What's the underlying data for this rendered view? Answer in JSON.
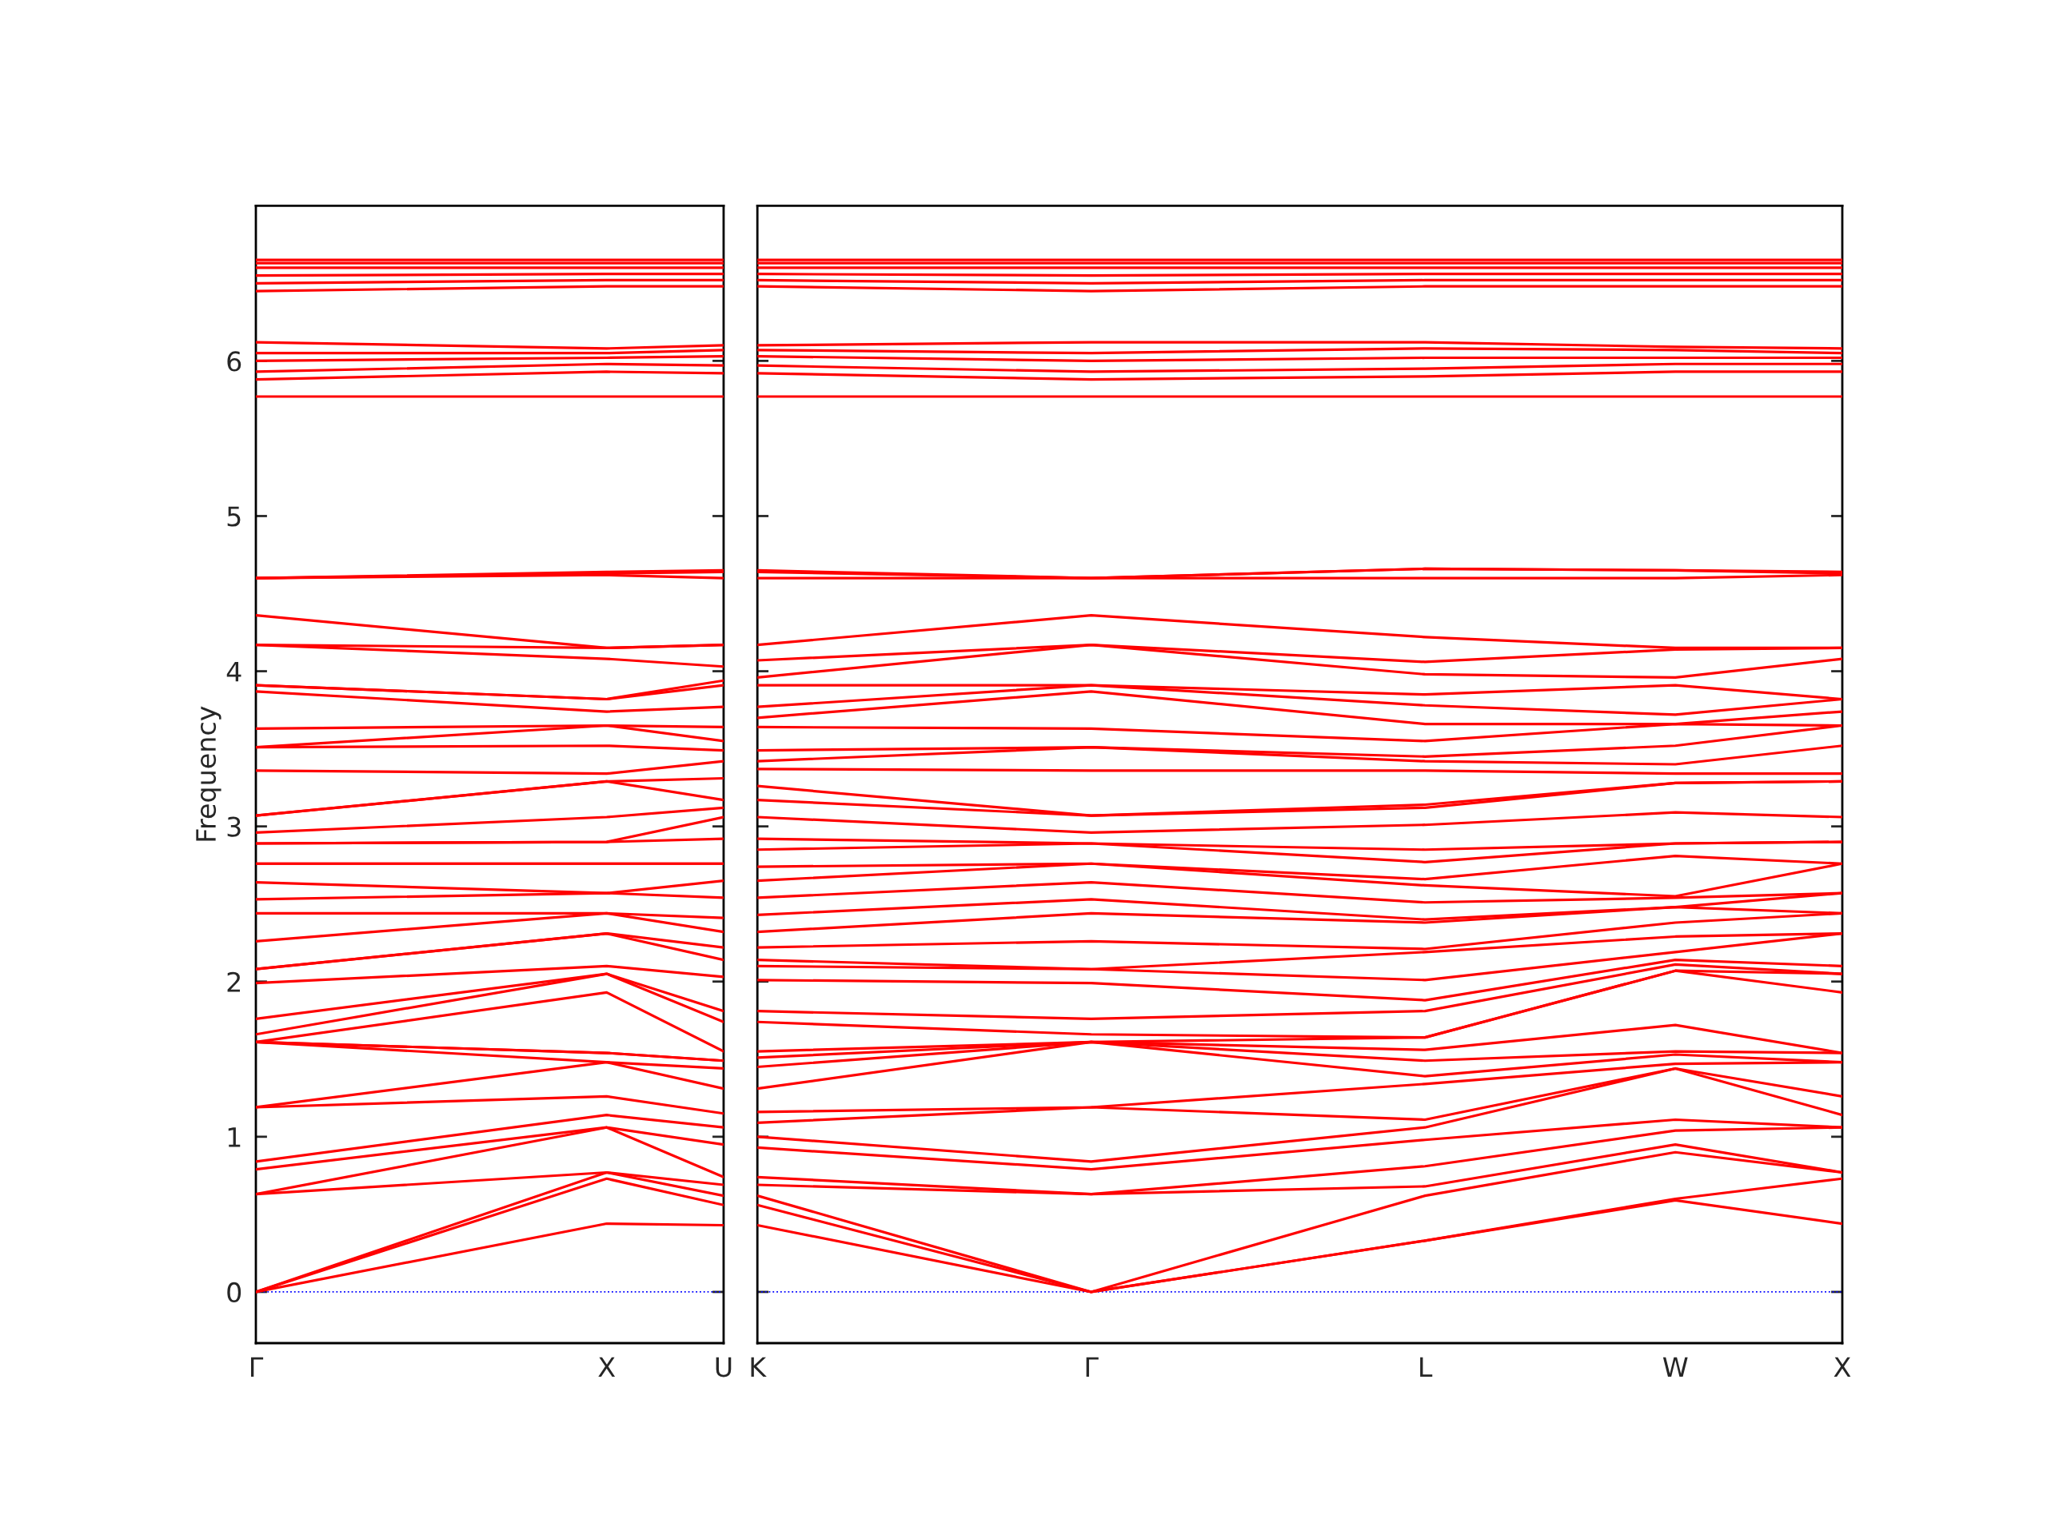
{
  "chart_data": [
    {
      "type": "line",
      "ylabel": "Frequency",
      "categories": [
        "Γ",
        null,
        null,
        "X",
        "U"
      ],
      "ylim": [
        -0.33,
        7.0
      ],
      "yticks": [
        0,
        1,
        2,
        3,
        4,
        5,
        6
      ],
      "grid": false,
      "marker": "none",
      "line_style": "solid",
      "ref_lines": [
        {
          "axis": "y",
          "value": 0,
          "color": "#0000ff",
          "line_style": "dotted"
        }
      ],
      "series": [
        {
          "color": "#ff0000",
          "values": [
            0,
            null,
            null,
            0.44,
            0.43
          ]
        },
        {
          "color": "#ff0000",
          "values": [
            0,
            null,
            null,
            0.73,
            0.56
          ]
        },
        {
          "color": "#ff0000",
          "values": [
            0,
            null,
            null,
            0.77,
            0.62
          ]
        },
        {
          "color": "#ff0000",
          "values": [
            0.63,
            null,
            null,
            0.77,
            0.69
          ]
        },
        {
          "color": "#ff0000",
          "values": [
            0.63,
            null,
            null,
            1.06,
            0.74
          ]
        },
        {
          "color": "#ff0000",
          "values": [
            0.79,
            null,
            null,
            1.06,
            0.95
          ]
        },
        {
          "color": "#ff0000",
          "values": [
            0.84,
            null,
            null,
            1.14,
            1.06
          ]
        },
        {
          "color": "#ff0000",
          "values": [
            1.19,
            null,
            null,
            1.26,
            1.15
          ]
        },
        {
          "color": "#ff0000",
          "values": [
            1.19,
            null,
            null,
            1.48,
            1.31
          ]
        },
        {
          "color": "#ff0000",
          "values": [
            1.61,
            null,
            null,
            1.48,
            1.44
          ]
        },
        {
          "color": "#ff0000",
          "values": [
            1.61,
            null,
            null,
            1.54,
            1.49
          ]
        },
        {
          "color": "#ff0000",
          "values": [
            1.61,
            null,
            null,
            1.54,
            1.49
          ]
        },
        {
          "color": "#ff0000",
          "values": [
            1.61,
            null,
            null,
            1.93,
            1.55
          ]
        },
        {
          "color": "#ff0000",
          "values": [
            1.66,
            null,
            null,
            2.05,
            1.74
          ]
        },
        {
          "color": "#ff0000",
          "values": [
            1.76,
            null,
            null,
            2.05,
            1.81
          ]
        },
        {
          "color": "#ff0000",
          "values": [
            1.99,
            null,
            null,
            2.1,
            2.03
          ]
        },
        {
          "color": "#ff0000",
          "values": [
            2.08,
            null,
            null,
            2.31,
            2.14
          ]
        },
        {
          "color": "#ff0000",
          "values": [
            2.08,
            null,
            null,
            2.31,
            2.22
          ]
        },
        {
          "color": "#ff0000",
          "values": [
            2.26,
            null,
            null,
            2.44,
            2.32
          ]
        },
        {
          "color": "#ff0000",
          "values": [
            2.44,
            null,
            null,
            2.44,
            2.41
          ]
        },
        {
          "color": "#ff0000",
          "values": [
            2.53,
            null,
            null,
            2.57,
            2.54
          ]
        },
        {
          "color": "#ff0000",
          "values": [
            2.64,
            null,
            null,
            2.57,
            2.65
          ]
        },
        {
          "color": "#ff0000",
          "values": [
            2.76,
            null,
            null,
            2.76,
            2.76
          ]
        },
        {
          "color": "#ff0000",
          "values": [
            2.76,
            null,
            null,
            2.76,
            2.76
          ]
        },
        {
          "color": "#ff0000",
          "values": [
            2.89,
            null,
            null,
            2.9,
            2.92
          ]
        },
        {
          "color": "#ff0000",
          "values": [
            2.89,
            null,
            null,
            2.9,
            3.06
          ]
        },
        {
          "color": "#ff0000",
          "values": [
            2.96,
            null,
            null,
            3.06,
            3.12
          ]
        },
        {
          "color": "#ff0000",
          "values": [
            3.07,
            null,
            null,
            3.29,
            3.17
          ]
        },
        {
          "color": "#ff0000",
          "values": [
            3.07,
            null,
            null,
            3.29,
            3.31
          ]
        },
        {
          "color": "#ff0000",
          "values": [
            3.36,
            null,
            null,
            3.34,
            3.42
          ]
        },
        {
          "color": "#ff0000",
          "values": [
            3.51,
            null,
            null,
            3.52,
            3.49
          ]
        },
        {
          "color": "#ff0000",
          "values": [
            3.51,
            null,
            null,
            3.65,
            3.55
          ]
        },
        {
          "color": "#ff0000",
          "values": [
            3.63,
            null,
            null,
            3.65,
            3.64
          ]
        },
        {
          "color": "#ff0000",
          "values": [
            3.87,
            null,
            null,
            3.74,
            3.77
          ]
        },
        {
          "color": "#ff0000",
          "values": [
            3.91,
            null,
            null,
            3.82,
            3.91
          ]
        },
        {
          "color": "#ff0000",
          "values": [
            3.91,
            null,
            null,
            3.82,
            3.94
          ]
        },
        {
          "color": "#ff0000",
          "values": [
            4.17,
            null,
            null,
            4.08,
            4.03
          ]
        },
        {
          "color": "#ff0000",
          "values": [
            4.17,
            null,
            null,
            4.15,
            4.17
          ]
        },
        {
          "color": "#ff0000",
          "values": [
            4.36,
            null,
            null,
            4.15,
            4.17
          ]
        },
        {
          "color": "#ff0000",
          "values": [
            4.6,
            null,
            null,
            4.62,
            4.6
          ]
        },
        {
          "color": "#ff0000",
          "values": [
            4.6,
            null,
            null,
            4.63,
            4.64
          ]
        },
        {
          "color": "#ff0000",
          "values": [
            4.6,
            null,
            null,
            4.64,
            4.65
          ]
        },
        {
          "color": "#ff0000",
          "values": [
            5.77,
            null,
            null,
            5.77,
            5.77
          ]
        },
        {
          "color": "#ff0000",
          "values": [
            5.88,
            null,
            null,
            5.93,
            5.92
          ]
        },
        {
          "color": "#ff0000",
          "values": [
            5.93,
            null,
            null,
            5.98,
            5.97
          ]
        },
        {
          "color": "#ff0000",
          "values": [
            6.0,
            null,
            null,
            6.02,
            6.03
          ]
        },
        {
          "color": "#ff0000",
          "values": [
            6.05,
            null,
            null,
            6.05,
            6.07
          ]
        },
        {
          "color": "#ff0000",
          "values": [
            6.12,
            null,
            null,
            6.08,
            6.1
          ]
        },
        {
          "color": "#ff0000",
          "values": [
            6.45,
            null,
            null,
            6.48,
            6.48
          ]
        },
        {
          "color": "#ff0000",
          "values": [
            6.5,
            null,
            null,
            6.52,
            6.52
          ]
        },
        {
          "color": "#ff0000",
          "values": [
            6.55,
            null,
            null,
            6.56,
            6.56
          ]
        },
        {
          "color": "#ff0000",
          "values": [
            6.6,
            null,
            null,
            6.6,
            6.6
          ]
        },
        {
          "color": "#ff0000",
          "values": [
            6.63,
            null,
            null,
            6.63,
            6.63
          ]
        },
        {
          "color": "#ff0000",
          "values": [
            6.65,
            null,
            null,
            6.65,
            6.65
          ]
        }
      ]
    },
    {
      "type": "line",
      "categories": [
        "K",
        null,
        null,
        null,
        "Γ",
        null,
        null,
        null,
        "L",
        null,
        null,
        "W",
        null,
        "X"
      ],
      "ylim": [
        -0.33,
        7.0
      ],
      "yticks": [
        0,
        1,
        2,
        3,
        4,
        5,
        6
      ],
      "tick_labels": "x",
      "grid": false,
      "marker": "none",
      "line_style": "solid",
      "ref_lines": [
        {
          "axis": "y",
          "value": 0,
          "color": "#0000ff",
          "line_style": "dotted"
        }
      ],
      "series": [
        {
          "color": "#ff0000",
          "values": [
            0.43,
            null,
            null,
            null,
            0,
            null,
            null,
            null,
            0.33,
            null,
            null,
            0.59,
            null,
            0.44
          ]
        },
        {
          "color": "#ff0000",
          "values": [
            0.56,
            null,
            null,
            null,
            0,
            null,
            null,
            null,
            0.33,
            null,
            null,
            0.6,
            null,
            0.73
          ]
        },
        {
          "color": "#ff0000",
          "values": [
            0.62,
            null,
            null,
            null,
            0,
            null,
            null,
            null,
            0.62,
            null,
            null,
            0.9,
            null,
            0.77
          ]
        },
        {
          "color": "#ff0000",
          "values": [
            0.69,
            null,
            null,
            null,
            0.63,
            null,
            null,
            null,
            0.68,
            null,
            null,
            0.95,
            null,
            0.77
          ]
        },
        {
          "color": "#ff0000",
          "values": [
            0.74,
            null,
            null,
            null,
            0.63,
            null,
            null,
            null,
            0.81,
            null,
            null,
            1.04,
            null,
            1.06
          ]
        },
        {
          "color": "#ff0000",
          "values": [
            0.93,
            null,
            null,
            null,
            0.79,
            null,
            null,
            null,
            0.98,
            null,
            null,
            1.11,
            null,
            1.06
          ]
        },
        {
          "color": "#ff0000",
          "values": [
            1.0,
            null,
            null,
            null,
            0.84,
            null,
            null,
            null,
            1.06,
            null,
            null,
            1.44,
            null,
            1.14
          ]
        },
        {
          "color": "#ff0000",
          "values": [
            1.09,
            null,
            null,
            null,
            1.19,
            null,
            null,
            null,
            1.11,
            null,
            null,
            1.44,
            null,
            1.26
          ]
        },
        {
          "color": "#ff0000",
          "values": [
            1.16,
            null,
            null,
            null,
            1.19,
            null,
            null,
            null,
            1.34,
            null,
            null,
            1.47,
            null,
            1.48
          ]
        },
        {
          "color": "#ff0000",
          "values": [
            1.31,
            null,
            null,
            null,
            1.61,
            null,
            null,
            null,
            1.39,
            null,
            null,
            1.53,
            null,
            1.48
          ]
        },
        {
          "color": "#ff0000",
          "values": [
            1.45,
            null,
            null,
            null,
            1.61,
            null,
            null,
            null,
            1.49,
            null,
            null,
            1.55,
            null,
            1.54
          ]
        },
        {
          "color": "#ff0000",
          "values": [
            1.51,
            null,
            null,
            null,
            1.61,
            null,
            null,
            null,
            1.56,
            null,
            null,
            1.72,
            null,
            1.54
          ]
        },
        {
          "color": "#ff0000",
          "values": [
            1.55,
            null,
            null,
            null,
            1.61,
            null,
            null,
            null,
            1.64,
            null,
            null,
            2.07,
            null,
            1.93
          ]
        },
        {
          "color": "#ff0000",
          "values": [
            1.74,
            null,
            null,
            null,
            1.66,
            null,
            null,
            null,
            1.64,
            null,
            null,
            2.07,
            null,
            2.05
          ]
        },
        {
          "color": "#ff0000",
          "values": [
            1.81,
            null,
            null,
            null,
            1.76,
            null,
            null,
            null,
            1.81,
            null,
            null,
            2.11,
            null,
            2.05
          ]
        },
        {
          "color": "#ff0000",
          "values": [
            2.01,
            null,
            null,
            null,
            1.99,
            null,
            null,
            null,
            1.88,
            null,
            null,
            2.14,
            null,
            2.1
          ]
        },
        {
          "color": "#ff0000",
          "values": [
            2.1,
            null,
            null,
            null,
            2.08,
            null,
            null,
            null,
            2.01,
            null,
            null,
            2.19,
            null,
            2.31
          ]
        },
        {
          "color": "#ff0000",
          "values": [
            2.14,
            null,
            null,
            null,
            2.08,
            null,
            null,
            null,
            2.19,
            null,
            null,
            2.29,
            null,
            2.31
          ]
        },
        {
          "color": "#ff0000",
          "values": [
            2.22,
            null,
            null,
            null,
            2.26,
            null,
            null,
            null,
            2.21,
            null,
            null,
            2.38,
            null,
            2.44
          ]
        },
        {
          "color": "#ff0000",
          "values": [
            2.32,
            null,
            null,
            null,
            2.44,
            null,
            null,
            null,
            2.38,
            null,
            null,
            2.48,
            null,
            2.44
          ]
        },
        {
          "color": "#ff0000",
          "values": [
            2.43,
            null,
            null,
            null,
            2.53,
            null,
            null,
            null,
            2.4,
            null,
            null,
            2.48,
            null,
            2.57
          ]
        },
        {
          "color": "#ff0000",
          "values": [
            2.54,
            null,
            null,
            null,
            2.64,
            null,
            null,
            null,
            2.51,
            null,
            null,
            2.54,
            null,
            2.57
          ]
        },
        {
          "color": "#ff0000",
          "values": [
            2.65,
            null,
            null,
            null,
            2.76,
            null,
            null,
            null,
            2.62,
            null,
            null,
            2.55,
            null,
            2.76
          ]
        },
        {
          "color": "#ff0000",
          "values": [
            2.74,
            null,
            null,
            null,
            2.76,
            null,
            null,
            null,
            2.66,
            null,
            null,
            2.81,
            null,
            2.76
          ]
        },
        {
          "color": "#ff0000",
          "values": [
            2.85,
            null,
            null,
            null,
            2.89,
            null,
            null,
            null,
            2.77,
            null,
            null,
            2.89,
            null,
            2.9
          ]
        },
        {
          "color": "#ff0000",
          "values": [
            2.92,
            null,
            null,
            null,
            2.89,
            null,
            null,
            null,
            2.85,
            null,
            null,
            2.89,
            null,
            2.9
          ]
        },
        {
          "color": "#ff0000",
          "values": [
            3.06,
            null,
            null,
            null,
            2.96,
            null,
            null,
            null,
            3.01,
            null,
            null,
            3.09,
            null,
            3.06
          ]
        },
        {
          "color": "#ff0000",
          "values": [
            3.17,
            null,
            null,
            null,
            3.07,
            null,
            null,
            null,
            3.12,
            null,
            null,
            3.28,
            null,
            3.29
          ]
        },
        {
          "color": "#ff0000",
          "values": [
            3.26,
            null,
            null,
            null,
            3.07,
            null,
            null,
            null,
            3.14,
            null,
            null,
            3.28,
            null,
            3.29
          ]
        },
        {
          "color": "#ff0000",
          "values": [
            3.37,
            null,
            null,
            null,
            3.36,
            null,
            null,
            null,
            3.36,
            null,
            null,
            3.34,
            null,
            3.34
          ]
        },
        {
          "color": "#ff0000",
          "values": [
            3.42,
            null,
            null,
            null,
            3.51,
            null,
            null,
            null,
            3.42,
            null,
            null,
            3.4,
            null,
            3.52
          ]
        },
        {
          "color": "#ff0000",
          "values": [
            3.49,
            null,
            null,
            null,
            3.51,
            null,
            null,
            null,
            3.45,
            null,
            null,
            3.52,
            null,
            3.65
          ]
        },
        {
          "color": "#ff0000",
          "values": [
            3.64,
            null,
            null,
            null,
            3.63,
            null,
            null,
            null,
            3.55,
            null,
            null,
            3.66,
            null,
            3.65
          ]
        },
        {
          "color": "#ff0000",
          "values": [
            3.7,
            null,
            null,
            null,
            3.87,
            null,
            null,
            null,
            3.66,
            null,
            null,
            3.66,
            null,
            3.74
          ]
        },
        {
          "color": "#ff0000",
          "values": [
            3.77,
            null,
            null,
            null,
            3.91,
            null,
            null,
            null,
            3.78,
            null,
            null,
            3.72,
            null,
            3.82
          ]
        },
        {
          "color": "#ff0000",
          "values": [
            3.91,
            null,
            null,
            null,
            3.91,
            null,
            null,
            null,
            3.85,
            null,
            null,
            3.91,
            null,
            3.82
          ]
        },
        {
          "color": "#ff0000",
          "values": [
            3.96,
            null,
            null,
            null,
            4.17,
            null,
            null,
            null,
            3.98,
            null,
            null,
            3.96,
            null,
            4.08
          ]
        },
        {
          "color": "#ff0000",
          "values": [
            4.07,
            null,
            null,
            null,
            4.17,
            null,
            null,
            null,
            4.06,
            null,
            null,
            4.14,
            null,
            4.15
          ]
        },
        {
          "color": "#ff0000",
          "values": [
            4.17,
            null,
            null,
            null,
            4.36,
            null,
            null,
            null,
            4.22,
            null,
            null,
            4.15,
            null,
            4.15
          ]
        },
        {
          "color": "#ff0000",
          "values": [
            4.6,
            null,
            null,
            null,
            4.6,
            null,
            null,
            null,
            4.6,
            null,
            null,
            4.6,
            null,
            4.62
          ]
        },
        {
          "color": "#ff0000",
          "values": [
            4.64,
            null,
            null,
            null,
            4.6,
            null,
            null,
            null,
            4.66,
            null,
            null,
            4.65,
            null,
            4.63
          ]
        },
        {
          "color": "#ff0000",
          "values": [
            4.65,
            null,
            null,
            null,
            4.6,
            null,
            null,
            null,
            4.66,
            null,
            null,
            4.65,
            null,
            4.64
          ]
        },
        {
          "color": "#ff0000",
          "values": [
            5.77,
            null,
            null,
            null,
            5.77,
            null,
            null,
            null,
            5.77,
            null,
            null,
            5.77,
            null,
            5.77
          ]
        },
        {
          "color": "#ff0000",
          "values": [
            5.92,
            null,
            null,
            null,
            5.88,
            null,
            null,
            null,
            5.9,
            null,
            null,
            5.93,
            null,
            5.93
          ]
        },
        {
          "color": "#ff0000",
          "values": [
            5.97,
            null,
            null,
            null,
            5.93,
            null,
            null,
            null,
            5.95,
            null,
            null,
            5.98,
            null,
            5.98
          ]
        },
        {
          "color": "#ff0000",
          "values": [
            6.03,
            null,
            null,
            null,
            6.0,
            null,
            null,
            null,
            6.02,
            null,
            null,
            6.02,
            null,
            6.02
          ]
        },
        {
          "color": "#ff0000",
          "values": [
            6.07,
            null,
            null,
            null,
            6.05,
            null,
            null,
            null,
            6.08,
            null,
            null,
            6.07,
            null,
            6.05
          ]
        },
        {
          "color": "#ff0000",
          "values": [
            6.1,
            null,
            null,
            null,
            6.12,
            null,
            null,
            null,
            6.12,
            null,
            null,
            6.09,
            null,
            6.08
          ]
        },
        {
          "color": "#ff0000",
          "values": [
            6.48,
            null,
            null,
            null,
            6.45,
            null,
            null,
            null,
            6.48,
            null,
            null,
            6.48,
            null,
            6.48
          ]
        },
        {
          "color": "#ff0000",
          "values": [
            6.52,
            null,
            null,
            null,
            6.5,
            null,
            null,
            null,
            6.52,
            null,
            null,
            6.52,
            null,
            6.52
          ]
        },
        {
          "color": "#ff0000",
          "values": [
            6.56,
            null,
            null,
            null,
            6.55,
            null,
            null,
            null,
            6.56,
            null,
            null,
            6.56,
            null,
            6.56
          ]
        },
        {
          "color": "#ff0000",
          "values": [
            6.6,
            null,
            null,
            null,
            6.6,
            null,
            null,
            null,
            6.6,
            null,
            null,
            6.6,
            null,
            6.6
          ]
        },
        {
          "color": "#ff0000",
          "values": [
            6.63,
            null,
            null,
            null,
            6.63,
            null,
            null,
            null,
            6.63,
            null,
            null,
            6.63,
            null,
            6.63
          ]
        },
        {
          "color": "#ff0000",
          "values": [
            6.65,
            null,
            null,
            null,
            6.65,
            null,
            null,
            null,
            6.65,
            null,
            null,
            6.65,
            null,
            6.65
          ]
        }
      ]
    }
  ]
}
